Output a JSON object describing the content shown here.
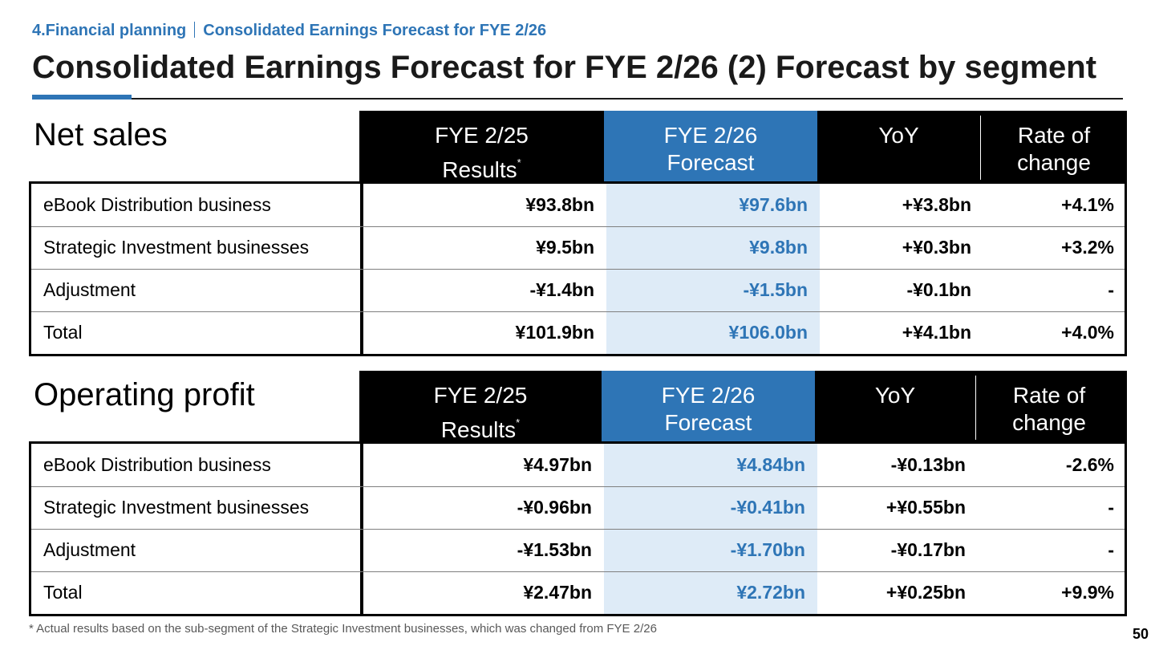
{
  "header": {
    "section": "4.Financial planning",
    "subsection": "Consolidated Earnings Forecast for FYE 2/26",
    "title": "Consolidated Earnings Forecast for FYE 2/26 (2) Forecast by segment"
  },
  "colors": {
    "accent": "#2e75b6",
    "forecast_shade": "#deebf7",
    "header_bg": "#000000"
  },
  "columns": {
    "results_line1": "FYE 2/25",
    "results_line2": "Results",
    "asterisk": "*",
    "forecast_line1": "FYE 2/26",
    "forecast_line2": "Forecast",
    "yoy": "YoY",
    "rate_line1": "Rate of",
    "rate_line2": "change"
  },
  "net_sales": {
    "label": "Net sales",
    "rows": [
      {
        "name": "eBook Distribution business",
        "results": "¥93.8bn",
        "forecast": "¥97.6bn",
        "yoy": "+¥3.8bn",
        "rate": "+4.1%"
      },
      {
        "name": "Strategic Investment businesses",
        "results": "¥9.5bn",
        "forecast": "¥9.8bn",
        "yoy": "+¥0.3bn",
        "rate": "+3.2%"
      },
      {
        "name": "Adjustment",
        "results": "-¥1.4bn",
        "forecast": "-¥1.5bn",
        "yoy": "-¥0.1bn",
        "rate": "-"
      },
      {
        "name": "Total",
        "results": "¥101.9bn",
        "forecast": "¥106.0bn",
        "yoy": "+¥4.1bn",
        "rate": "+4.0%"
      }
    ]
  },
  "operating_profit": {
    "label": "Operating profit",
    "rows": [
      {
        "name": "eBook Distribution business",
        "results": "¥4.97bn",
        "forecast": "¥4.84bn",
        "yoy": "-¥0.13bn",
        "rate": "-2.6%"
      },
      {
        "name": "Strategic Investment businesses",
        "results": "-¥0.96bn",
        "forecast": "-¥0.41bn",
        "yoy": "+¥0.55bn",
        "rate": "-"
      },
      {
        "name": "Adjustment",
        "results": "-¥1.53bn",
        "forecast": "-¥1.70bn",
        "yoy": "-¥0.17bn",
        "rate": "-"
      },
      {
        "name": "Total",
        "results": "¥2.47bn",
        "forecast": "¥2.72bn",
        "yoy": "+¥0.25bn",
        "rate": "+9.9%"
      }
    ]
  },
  "footnote": "* Actual results based on the sub-segment of the Strategic Investment businesses, which was changed from FYE 2/26",
  "page_number": "50"
}
